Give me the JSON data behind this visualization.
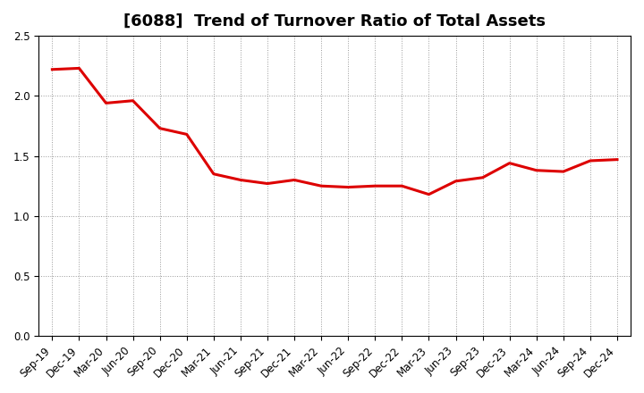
{
  "title": "[6088]  Trend of Turnover Ratio of Total Assets",
  "x_labels": [
    "Sep-19",
    "Dec-19",
    "Mar-20",
    "Jun-20",
    "Sep-20",
    "Dec-20",
    "Mar-21",
    "Jun-21",
    "Sep-21",
    "Dec-21",
    "Mar-22",
    "Jun-22",
    "Sep-22",
    "Dec-22",
    "Mar-23",
    "Jun-23",
    "Sep-23",
    "Dec-23",
    "Mar-24",
    "Jun-24",
    "Sep-24",
    "Dec-24"
  ],
  "values": [
    2.22,
    2.23,
    1.94,
    1.96,
    1.73,
    1.68,
    1.35,
    1.3,
    1.27,
    1.3,
    1.25,
    1.24,
    1.25,
    1.25,
    1.18,
    1.29,
    1.32,
    1.44,
    1.38,
    1.37,
    1.46,
    1.47
  ],
  "line_color": "#DD0000",
  "line_width": 2.2,
  "ylim": [
    0.0,
    2.5
  ],
  "yticks": [
    0.0,
    0.5,
    1.0,
    1.5,
    2.0,
    2.5
  ],
  "background_color": "#FFFFFF",
  "grid_color": "#999999",
  "title_fontsize": 13,
  "tick_fontsize": 8.5
}
